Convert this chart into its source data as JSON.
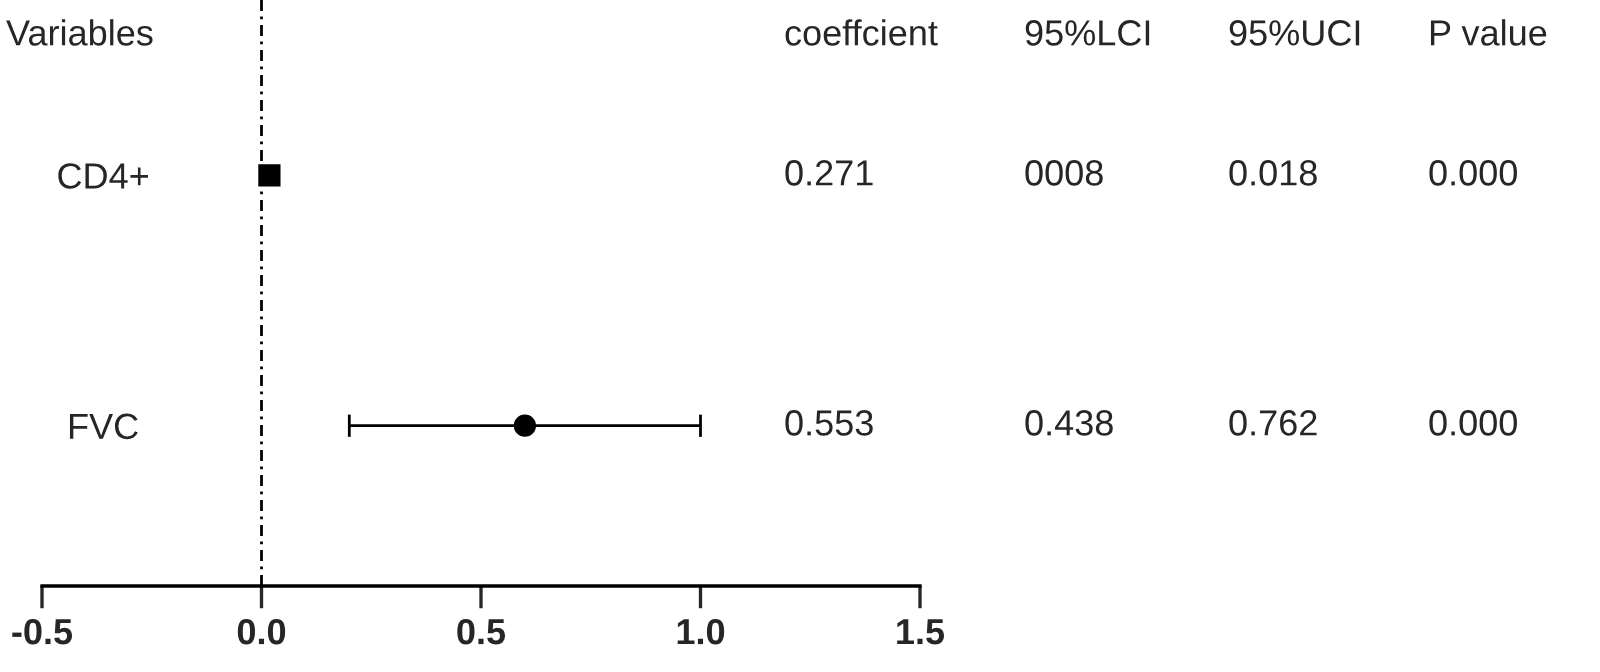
{
  "chart_data": {
    "type": "scatter",
    "orientation": "horizontal",
    "ylabel": "Variables",
    "categories": [
      "CD4+",
      "FVC"
    ],
    "series": [
      {
        "color": "#000000",
        "marker": "square",
        "values": [
          0.018,
          null
        ],
        "errors": [
          null,
          null
        ]
      },
      {
        "color": "#000000",
        "marker": "circle",
        "values": [
          null,
          0.6
        ],
        "errors": [
          null,
          [
            0.2,
            1.0
          ]
        ]
      }
    ],
    "xlim": [
      -0.5,
      1.5
    ],
    "xticks": [
      {
        "value": -0.5,
        "label": "-0.5"
      },
      {
        "value": 0,
        "label": "0.0"
      },
      {
        "value": 0.5,
        "label": "0.5"
      },
      {
        "value": 1.0,
        "label": "1.0"
      },
      {
        "value": 1.5,
        "label": "1.5"
      }
    ],
    "ref_lines": [
      {
        "axis": "x",
        "value": 0,
        "color": "#000000",
        "line_style": "dotted"
      }
    ],
    "grid": false,
    "legend": false,
    "annotations": [
      "coeffcient",
      "95%LCI",
      "95%UCI",
      "P value",
      "0.271",
      "0008",
      "0.018",
      "0.000",
      "0.553",
      "0.438",
      "0.762",
      "0.000"
    ]
  }
}
